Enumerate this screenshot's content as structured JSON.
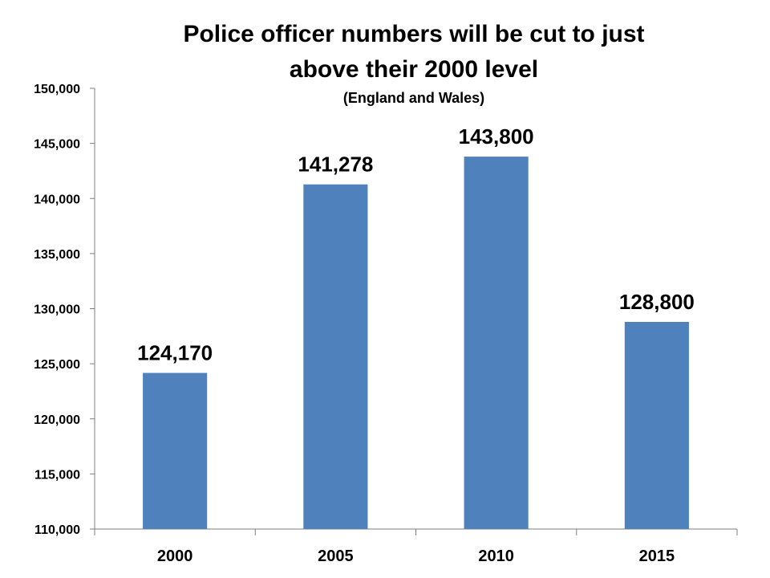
{
  "chart_data": {
    "type": "bar",
    "title_lines": [
      "Police officer numbers will be cut to just",
      "above their 2000 level"
    ],
    "subtitle": "(England and Wales)",
    "xlabel": "",
    "ylabel": "",
    "categories": [
      "2000",
      "2005",
      "2010",
      "2015"
    ],
    "values": [
      124170,
      141278,
      143800,
      128800
    ],
    "data_labels": [
      "124,170",
      "141,278",
      "143,800",
      "128,800"
    ],
    "ylim": [
      110000,
      150000
    ],
    "yticks": [
      110000,
      115000,
      120000,
      125000,
      130000,
      135000,
      140000,
      145000,
      150000
    ],
    "ytick_labels": [
      "110,000",
      "115,000",
      "120,000",
      "125,000",
      "130,000",
      "135,000",
      "140,000",
      "145,000",
      "150,000"
    ],
    "grid": false,
    "legend": "none",
    "bar_color": "#4F81BD"
  }
}
